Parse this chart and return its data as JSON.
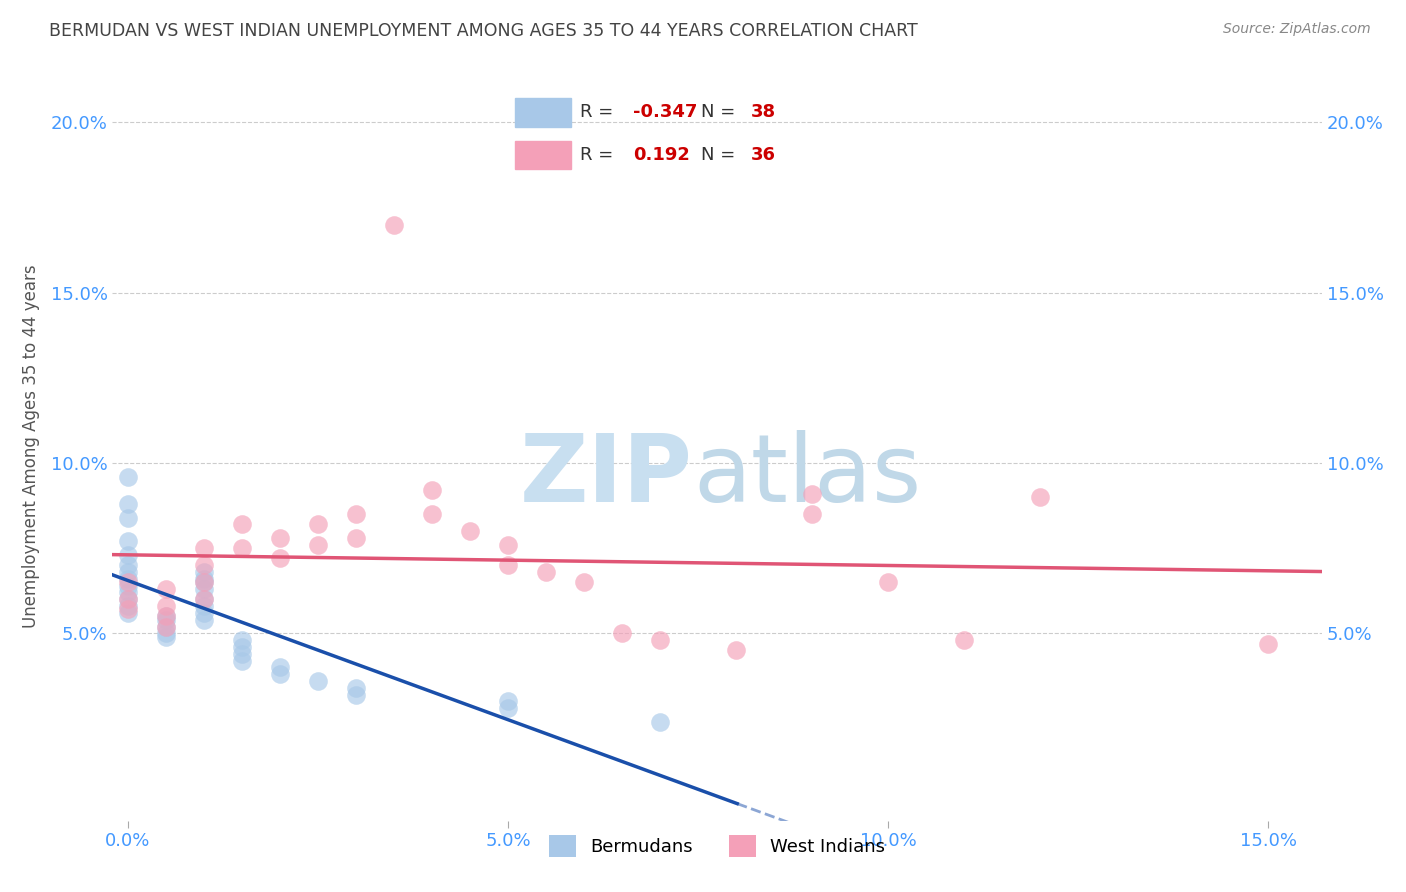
{
  "title": "BERMUDAN VS WEST INDIAN UNEMPLOYMENT AMONG AGES 35 TO 44 YEARS CORRELATION CHART",
  "source": "Source: ZipAtlas.com",
  "xlim": [
    -0.002,
    0.157
  ],
  "ylim": [
    -0.005,
    0.215
  ],
  "xtick_vals": [
    0.0,
    0.05,
    0.1,
    0.15
  ],
  "ytick_vals": [
    0.05,
    0.1,
    0.15,
    0.2
  ],
  "bermuda_color": "#a8c8e8",
  "westindian_color": "#f4a0b8",
  "bermuda_line_color": "#1a4faa",
  "westindian_line_color": "#e05575",
  "axis_tick_color": "#4499ff",
  "ylabel": "Unemployment Among Ages 35 to 44 years",
  "grid_color": "#cccccc",
  "title_color": "#444444",
  "source_color": "#888888",
  "watermark_zip_color": "#c8dff0",
  "watermark_atlas_color": "#c0d8e8",
  "bermuda_scatter_x": [
    0.0,
    0.0,
    0.0,
    0.0,
    0.0,
    0.0,
    0.0,
    0.0,
    0.0,
    0.0,
    0.0,
    0.0,
    0.0,
    0.005,
    0.005,
    0.005,
    0.005,
    0.005,
    0.01,
    0.01,
    0.01,
    0.01,
    0.01,
    0.01,
    0.01,
    0.01,
    0.015,
    0.015,
    0.015,
    0.015,
    0.02,
    0.02,
    0.025,
    0.03,
    0.03,
    0.05,
    0.05,
    0.07
  ],
  "bermuda_scatter_y": [
    0.096,
    0.088,
    0.084,
    0.077,
    0.073,
    0.07,
    0.068,
    0.066,
    0.064,
    0.062,
    0.06,
    0.058,
    0.056,
    0.055,
    0.054,
    0.052,
    0.05,
    0.049,
    0.068,
    0.066,
    0.065,
    0.063,
    0.06,
    0.058,
    0.056,
    0.054,
    0.048,
    0.046,
    0.044,
    0.042,
    0.04,
    0.038,
    0.036,
    0.034,
    0.032,
    0.03,
    0.028,
    0.024
  ],
  "westindian_scatter_x": [
    0.0,
    0.0,
    0.0,
    0.005,
    0.005,
    0.005,
    0.005,
    0.01,
    0.01,
    0.01,
    0.01,
    0.015,
    0.015,
    0.02,
    0.02,
    0.025,
    0.025,
    0.03,
    0.03,
    0.035,
    0.04,
    0.04,
    0.045,
    0.05,
    0.05,
    0.055,
    0.06,
    0.065,
    0.07,
    0.08,
    0.09,
    0.09,
    0.1,
    0.11,
    0.12,
    0.15
  ],
  "westindian_scatter_y": [
    0.065,
    0.06,
    0.057,
    0.063,
    0.058,
    0.055,
    0.052,
    0.075,
    0.07,
    0.065,
    0.06,
    0.082,
    0.075,
    0.078,
    0.072,
    0.082,
    0.076,
    0.085,
    0.078,
    0.17,
    0.092,
    0.085,
    0.08,
    0.076,
    0.07,
    0.068,
    0.065,
    0.05,
    0.048,
    0.045,
    0.091,
    0.085,
    0.065,
    0.048,
    0.09,
    0.047
  ],
  "legend_R1": "-0.347",
  "legend_N1": "38",
  "legend_R2": "0.192",
  "legend_N2": "36",
  "legend_R_color": "#cc0000",
  "legend_N_color": "#cc0000"
}
